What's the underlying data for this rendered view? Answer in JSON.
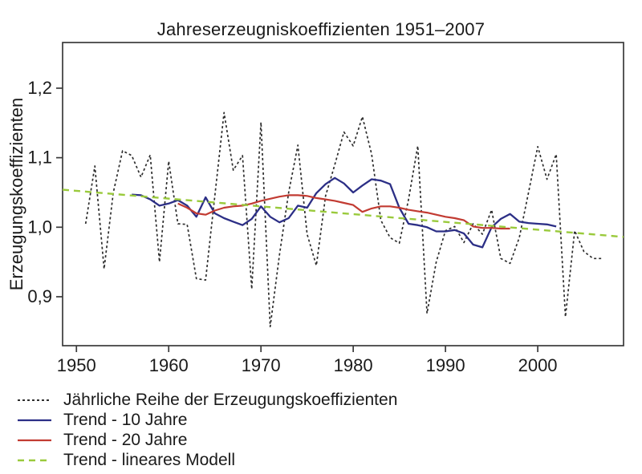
{
  "chart_data": {
    "type": "line",
    "title": "Jahreserzeugniskoeffizienten 1951–2007",
    "ylabel": "Erzeugungskoeffizienten",
    "xlabel": "",
    "grid": false,
    "legend_position": "bottom-left",
    "axis_color": "#3a3a3a",
    "text_color": "#1a1a1a",
    "xlim": [
      1948.5,
      2009.3
    ],
    "ylim": [
      0.8296,
      1.2657
    ],
    "x_ticks": {
      "values": [
        1950,
        1960,
        1970,
        1980,
        1990,
        2000
      ],
      "labels": [
        "1950",
        "1960",
        "1970",
        "1980",
        "1990",
        "2000"
      ]
    },
    "y_ticks": {
      "values": [
        0.9,
        1.0,
        1.1,
        1.2
      ],
      "labels": [
        "0,9",
        "1,0",
        "1,1",
        "1,2"
      ]
    },
    "series": [
      {
        "name": "Jährliche Reihe der Erzeugungskoeffizienten",
        "color": "#2d2d2d",
        "style": "dashed",
        "dash": "3 3",
        "width": 1.7,
        "start_year": 1951,
        "values": [
          1.005,
          1.088,
          0.94,
          1.05,
          1.11,
          1.103,
          1.072,
          1.104,
          0.95,
          1.095,
          1.005,
          1.004,
          0.926,
          0.924,
          1.045,
          1.165,
          1.082,
          1.103,
          0.911,
          1.151,
          0.857,
          0.96,
          1.05,
          1.118,
          0.99,
          0.945,
          1.045,
          1.09,
          1.137,
          1.117,
          1.159,
          1.105,
          1.01,
          0.985,
          0.977,
          1.04,
          1.117,
          0.876,
          0.95,
          0.995,
          1.001,
          0.978,
          1.005,
          0.99,
          1.025,
          0.955,
          0.948,
          0.985,
          1.05,
          1.116,
          1.069,
          1.105,
          0.871,
          0.995,
          0.965,
          0.955,
          0.955
        ]
      },
      {
        "name": "Trend - 10 Jahre",
        "color": "#2c2f86",
        "style": "solid",
        "dash": "",
        "width": 2.3,
        "start_year": 1956,
        "values": [
          1.047,
          1.046,
          1.04,
          1.031,
          1.034,
          1.039,
          1.031,
          1.015,
          1.043,
          1.02,
          1.013,
          1.008,
          1.003,
          1.012,
          1.03,
          1.015,
          1.007,
          1.013,
          1.031,
          1.028,
          1.049,
          1.062,
          1.071,
          1.063,
          1.05,
          1.06,
          1.069,
          1.067,
          1.062,
          1.028,
          1.005,
          1.003,
          1.0,
          0.994,
          0.994,
          0.996,
          0.991,
          0.975,
          0.971,
          1.0,
          1.012,
          1.019,
          1.008,
          1.006,
          1.005,
          1.004,
          1.001
        ]
      },
      {
        "name": "Trend - 20 Jahre",
        "color": "#c23b32",
        "style": "solid",
        "dash": "",
        "width": 2.2,
        "start_year": 1961,
        "values": [
          1.034,
          1.028,
          1.02,
          1.018,
          1.024,
          1.028,
          1.03,
          1.031,
          1.034,
          1.038,
          1.041,
          1.044,
          1.046,
          1.046,
          1.045,
          1.042,
          1.04,
          1.038,
          1.035,
          1.032,
          1.022,
          1.027,
          1.03,
          1.03,
          1.028,
          1.025,
          1.023,
          1.021,
          1.018,
          1.015,
          1.013,
          1.01,
          1.001,
          0.999,
          0.999,
          0.998,
          0.998
        ]
      },
      {
        "name": "Trend - lineares Modell",
        "color": "#9aca3c",
        "style": "dashed",
        "dash": "8 6",
        "width": 2.4,
        "points": [
          [
            1948.5,
            1.054
          ],
          [
            2009.3,
            0.986
          ]
        ]
      }
    ]
  }
}
